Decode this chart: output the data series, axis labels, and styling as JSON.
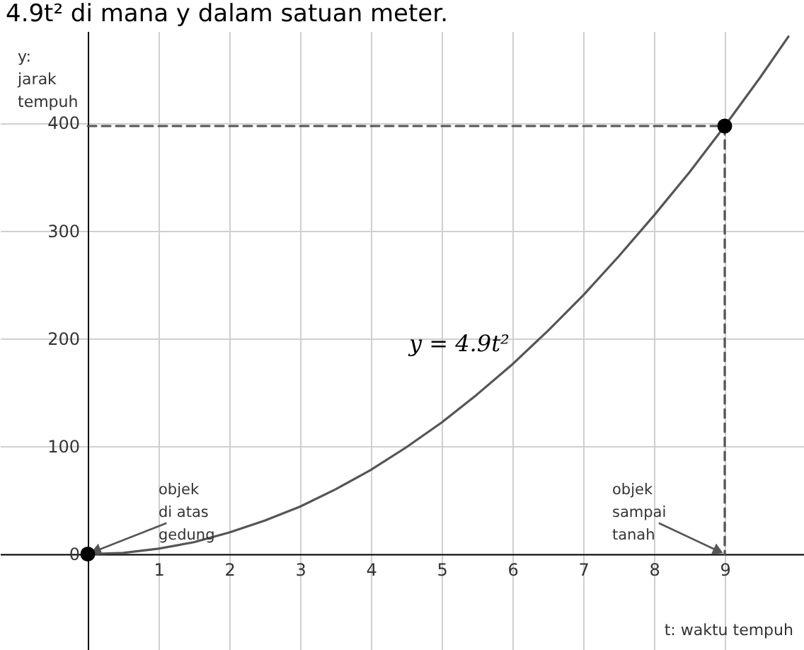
{
  "chart_data": {
    "type": "line",
    "title": "4.9t² di mana y dalam satuan meter.",
    "xlabel": "t: waktu tempuh",
    "ylabel": "y:\njarak\ntempuh",
    "xlim": [
      -1.24,
      10.12
    ],
    "ylim": [
      -89,
      485
    ],
    "xticks": [
      1,
      2,
      3,
      4,
      5,
      6,
      7,
      8,
      9
    ],
    "yticks": [
      0,
      100,
      200,
      300,
      400
    ],
    "grid": true,
    "series": [
      {
        "name": "y = 4.9t²",
        "color": "#555555",
        "x": [
          0,
          0.5,
          1,
          1.5,
          2,
          2.5,
          3,
          3.5,
          4,
          4.5,
          5,
          5.5,
          6,
          6.5,
          7,
          7.5,
          8,
          8.5,
          9,
          9.5,
          9.9
        ],
        "values": [
          0,
          1,
          5,
          11,
          20,
          31,
          44,
          60,
          78,
          99,
          122,
          148,
          176,
          207,
          240,
          276,
          314,
          354,
          397,
          442,
          480
        ]
      },
      {
        "color": "#555555",
        "line_style": "dashed",
        "x": [
          0,
          9,
          9
        ],
        "values": [
          397,
          397,
          0
        ]
      },
      {
        "type": "scatter",
        "color": "#000000",
        "marker": "circle",
        "x": [
          0,
          9
        ],
        "values": [
          0,
          397
        ]
      }
    ],
    "annotations": [
      {
        "text": "objek\ndi atas\ngedung",
        "x": 0,
        "y": 0
      },
      {
        "text": "objek\nsampai\ntanah",
        "x": 9,
        "y": 0
      }
    ]
  }
}
